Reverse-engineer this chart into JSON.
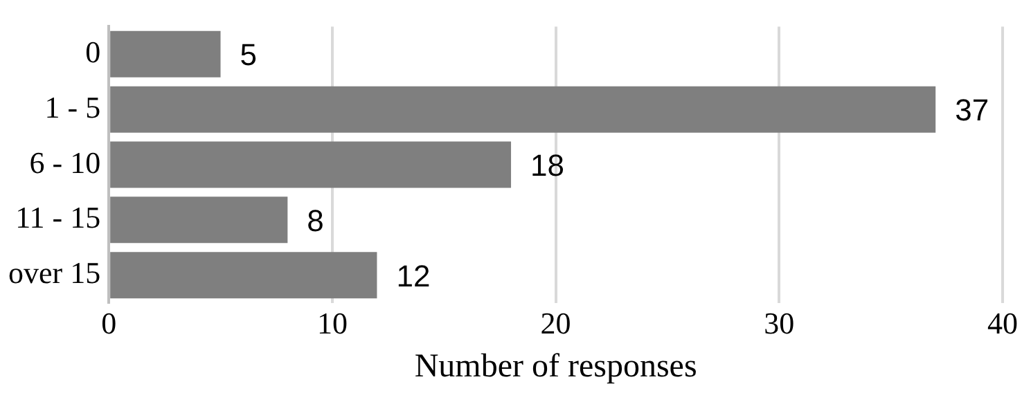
{
  "chart_data": {
    "type": "bar",
    "orientation": "horizontal",
    "xlabel": "Number of responses",
    "categories": [
      "0",
      "1 - 5",
      "6 - 10",
      "11 - 15",
      "over 15"
    ],
    "values": [
      5,
      37,
      18,
      8,
      12
    ],
    "color": "#7f7f7f",
    "xlim": [
      0,
      40
    ],
    "xticks": [
      0,
      10,
      20,
      30,
      40
    ],
    "grid": "x",
    "data_labels": true
  }
}
